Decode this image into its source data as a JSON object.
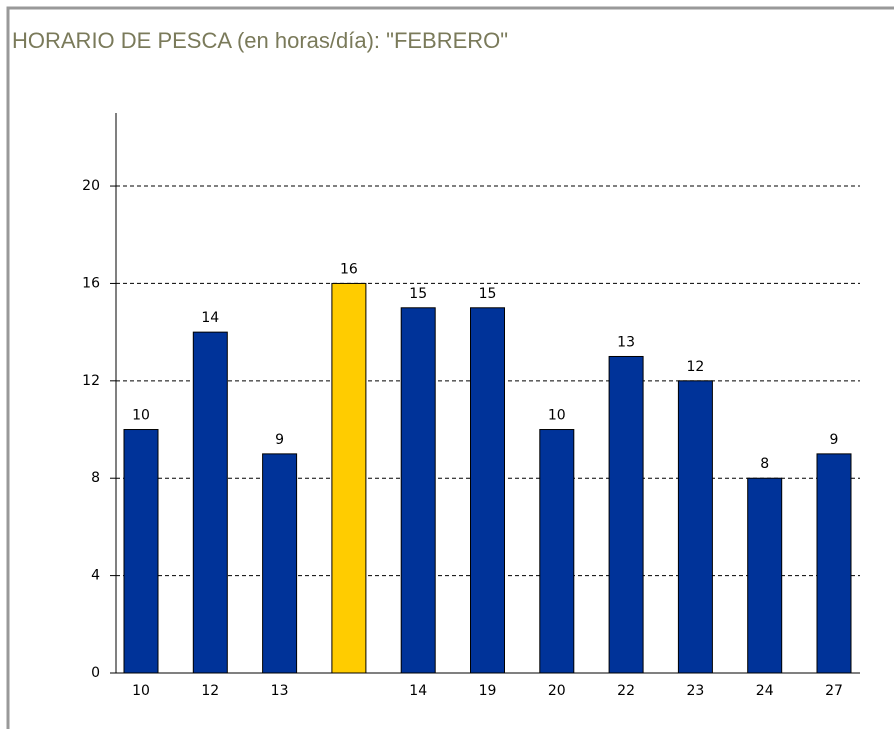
{
  "chart_data": {
    "type": "bar",
    "title": "HORARIO DE PESCA (en horas/día): \"FEBRERO\"",
    "categories": [
      "10",
      "12",
      "13",
      null,
      "14",
      "19",
      "20",
      "22",
      "23",
      "24",
      "27"
    ],
    "values": [
      10,
      14,
      9,
      16,
      15,
      15,
      10,
      13,
      12,
      8,
      9
    ],
    "colors": [
      "#003399",
      "#003399",
      "#003399",
      "#ffcc00",
      "#003399",
      "#003399",
      "#003399",
      "#003399",
      "#003399",
      "#003399",
      "#003399"
    ],
    "ylim": [
      0,
      23
    ],
    "yticks": [
      0,
      4,
      8,
      12,
      16,
      20
    ],
    "grid": true
  }
}
